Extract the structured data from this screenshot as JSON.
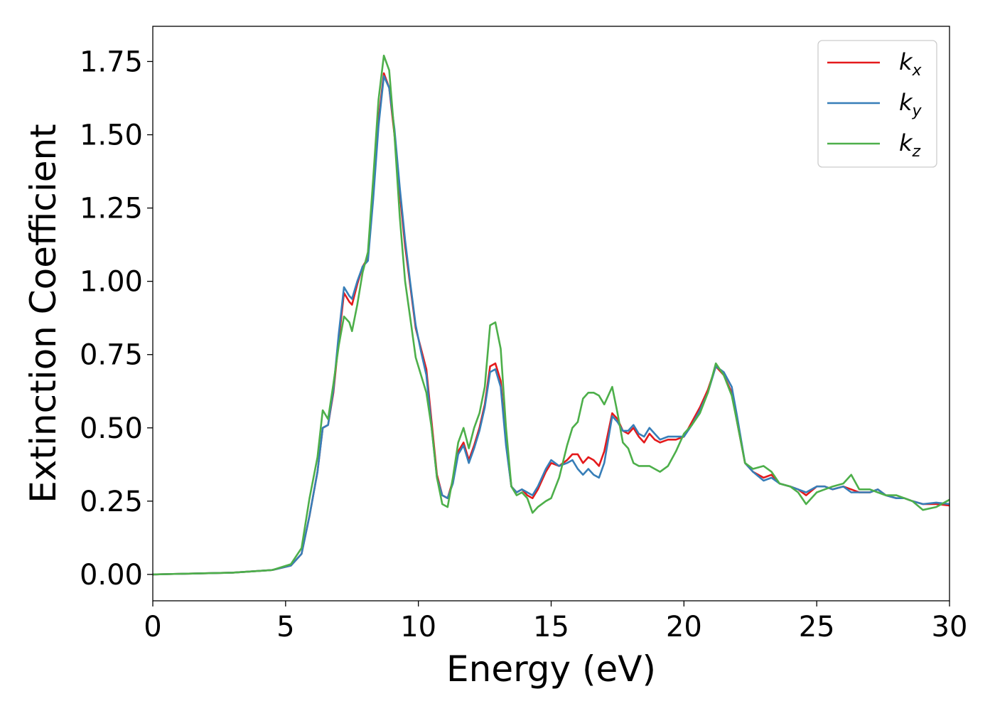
{
  "chart_data": {
    "type": "line",
    "title": "",
    "xlabel": "Energy (eV)",
    "ylabel": "Extinction Coefficient",
    "xlim": [
      0,
      30
    ],
    "ylim": [
      -0.09,
      1.87
    ],
    "xticks": [
      0,
      5,
      10,
      15,
      20,
      25,
      30
    ],
    "yticks": [
      0.0,
      0.25,
      0.5,
      0.75,
      1.0,
      1.25,
      1.5,
      1.75
    ],
    "xtick_labels": [
      "0",
      "5",
      "10",
      "15",
      "20",
      "25",
      "30"
    ],
    "ytick_labels": [
      "0.00",
      "0.25",
      "0.50",
      "0.75",
      "1.00",
      "1.25",
      "1.50",
      "1.75"
    ],
    "grid": false,
    "legend_position": "top-right",
    "series": [
      {
        "name": "k",
        "subscript": "x",
        "color": "#e41a1c",
        "points": [
          [
            0,
            0.0
          ],
          [
            3,
            0.006
          ],
          [
            4.5,
            0.015
          ],
          [
            5.2,
            0.03
          ],
          [
            5.6,
            0.07
          ],
          [
            5.9,
            0.2
          ],
          [
            6.2,
            0.35
          ],
          [
            6.4,
            0.5
          ],
          [
            6.6,
            0.51
          ],
          [
            6.8,
            0.62
          ],
          [
            7.0,
            0.8
          ],
          [
            7.2,
            0.96
          ],
          [
            7.4,
            0.93
          ],
          [
            7.5,
            0.92
          ],
          [
            7.7,
            0.99
          ],
          [
            7.9,
            1.05
          ],
          [
            8.1,
            1.08
          ],
          [
            8.3,
            1.3
          ],
          [
            8.5,
            1.55
          ],
          [
            8.7,
            1.71
          ],
          [
            8.9,
            1.66
          ],
          [
            9.1,
            1.5
          ],
          [
            9.3,
            1.3
          ],
          [
            9.5,
            1.12
          ],
          [
            9.7,
            0.98
          ],
          [
            9.9,
            0.84
          ],
          [
            10.1,
            0.77
          ],
          [
            10.3,
            0.7
          ],
          [
            10.5,
            0.52
          ],
          [
            10.7,
            0.34
          ],
          [
            10.9,
            0.27
          ],
          [
            11.1,
            0.26
          ],
          [
            11.3,
            0.32
          ],
          [
            11.5,
            0.42
          ],
          [
            11.7,
            0.45
          ],
          [
            11.9,
            0.39
          ],
          [
            12.1,
            0.44
          ],
          [
            12.3,
            0.5
          ],
          [
            12.5,
            0.58
          ],
          [
            12.7,
            0.71
          ],
          [
            12.9,
            0.72
          ],
          [
            13.1,
            0.66
          ],
          [
            13.3,
            0.45
          ],
          [
            13.5,
            0.3
          ],
          [
            13.7,
            0.28
          ],
          [
            13.9,
            0.29
          ],
          [
            14.1,
            0.27
          ],
          [
            14.3,
            0.26
          ],
          [
            14.5,
            0.29
          ],
          [
            14.8,
            0.35
          ],
          [
            15.0,
            0.38
          ],
          [
            15.3,
            0.37
          ],
          [
            15.6,
            0.39
          ],
          [
            15.8,
            0.41
          ],
          [
            16.0,
            0.41
          ],
          [
            16.2,
            0.38
          ],
          [
            16.4,
            0.4
          ],
          [
            16.6,
            0.39
          ],
          [
            16.8,
            0.37
          ],
          [
            17.0,
            0.42
          ],
          [
            17.3,
            0.55
          ],
          [
            17.5,
            0.53
          ],
          [
            17.7,
            0.49
          ],
          [
            17.9,
            0.48
          ],
          [
            18.1,
            0.5
          ],
          [
            18.3,
            0.47
          ],
          [
            18.5,
            0.45
          ],
          [
            18.7,
            0.48
          ],
          [
            18.9,
            0.46
          ],
          [
            19.1,
            0.45
          ],
          [
            19.4,
            0.46
          ],
          [
            19.7,
            0.46
          ],
          [
            20.0,
            0.47
          ],
          [
            20.3,
            0.52
          ],
          [
            20.6,
            0.57
          ],
          [
            20.9,
            0.63
          ],
          [
            21.2,
            0.71
          ],
          [
            21.5,
            0.68
          ],
          [
            21.8,
            0.62
          ],
          [
            22.0,
            0.52
          ],
          [
            22.3,
            0.38
          ],
          [
            22.6,
            0.35
          ],
          [
            23.0,
            0.33
          ],
          [
            23.3,
            0.34
          ],
          [
            23.6,
            0.31
          ],
          [
            24.0,
            0.3
          ],
          [
            24.3,
            0.29
          ],
          [
            24.6,
            0.27
          ],
          [
            25.0,
            0.3
          ],
          [
            25.3,
            0.3
          ],
          [
            25.6,
            0.29
          ],
          [
            26.0,
            0.3
          ],
          [
            26.3,
            0.29
          ],
          [
            26.6,
            0.28
          ],
          [
            27.0,
            0.28
          ],
          [
            27.3,
            0.29
          ],
          [
            27.6,
            0.27
          ],
          [
            28.0,
            0.26
          ],
          [
            28.3,
            0.26
          ],
          [
            28.6,
            0.25
          ],
          [
            29.0,
            0.24
          ],
          [
            29.5,
            0.24
          ],
          [
            30.0,
            0.235
          ]
        ]
      },
      {
        "name": "k",
        "subscript": "y",
        "color": "#377eb8",
        "points": [
          [
            0,
            0.0
          ],
          [
            3,
            0.006
          ],
          [
            4.5,
            0.015
          ],
          [
            5.2,
            0.03
          ],
          [
            5.6,
            0.07
          ],
          [
            5.9,
            0.2
          ],
          [
            6.2,
            0.35
          ],
          [
            6.4,
            0.5
          ],
          [
            6.6,
            0.51
          ],
          [
            6.8,
            0.63
          ],
          [
            7.0,
            0.82
          ],
          [
            7.2,
            0.98
          ],
          [
            7.4,
            0.95
          ],
          [
            7.5,
            0.94
          ],
          [
            7.7,
            1.0
          ],
          [
            7.9,
            1.05
          ],
          [
            8.1,
            1.07
          ],
          [
            8.3,
            1.28
          ],
          [
            8.5,
            1.53
          ],
          [
            8.7,
            1.7
          ],
          [
            8.9,
            1.66
          ],
          [
            9.1,
            1.52
          ],
          [
            9.3,
            1.32
          ],
          [
            9.5,
            1.14
          ],
          [
            9.7,
            0.99
          ],
          [
            9.9,
            0.85
          ],
          [
            10.1,
            0.76
          ],
          [
            10.3,
            0.68
          ],
          [
            10.5,
            0.5
          ],
          [
            10.7,
            0.33
          ],
          [
            10.9,
            0.27
          ],
          [
            11.1,
            0.26
          ],
          [
            11.3,
            0.31
          ],
          [
            11.5,
            0.41
          ],
          [
            11.7,
            0.44
          ],
          [
            11.9,
            0.38
          ],
          [
            12.1,
            0.43
          ],
          [
            12.3,
            0.49
          ],
          [
            12.5,
            0.57
          ],
          [
            12.7,
            0.69
          ],
          [
            12.9,
            0.7
          ],
          [
            13.1,
            0.64
          ],
          [
            13.3,
            0.44
          ],
          [
            13.5,
            0.3
          ],
          [
            13.7,
            0.28
          ],
          [
            13.9,
            0.29
          ],
          [
            14.1,
            0.28
          ],
          [
            14.3,
            0.27
          ],
          [
            14.5,
            0.3
          ],
          [
            14.8,
            0.36
          ],
          [
            15.0,
            0.39
          ],
          [
            15.3,
            0.37
          ],
          [
            15.6,
            0.38
          ],
          [
            15.8,
            0.39
          ],
          [
            16.0,
            0.36
          ],
          [
            16.2,
            0.34
          ],
          [
            16.4,
            0.36
          ],
          [
            16.6,
            0.34
          ],
          [
            16.8,
            0.33
          ],
          [
            17.0,
            0.38
          ],
          [
            17.3,
            0.54
          ],
          [
            17.5,
            0.52
          ],
          [
            17.7,
            0.49
          ],
          [
            17.9,
            0.49
          ],
          [
            18.1,
            0.51
          ],
          [
            18.3,
            0.48
          ],
          [
            18.5,
            0.47
          ],
          [
            18.7,
            0.5
          ],
          [
            18.9,
            0.48
          ],
          [
            19.1,
            0.46
          ],
          [
            19.4,
            0.47
          ],
          [
            19.7,
            0.47
          ],
          [
            20.0,
            0.47
          ],
          [
            20.3,
            0.51
          ],
          [
            20.6,
            0.56
          ],
          [
            20.9,
            0.62
          ],
          [
            21.2,
            0.71
          ],
          [
            21.5,
            0.69
          ],
          [
            21.8,
            0.64
          ],
          [
            22.0,
            0.54
          ],
          [
            22.3,
            0.38
          ],
          [
            22.6,
            0.35
          ],
          [
            23.0,
            0.32
          ],
          [
            23.3,
            0.33
          ],
          [
            23.6,
            0.31
          ],
          [
            24.0,
            0.3
          ],
          [
            24.3,
            0.29
          ],
          [
            24.6,
            0.28
          ],
          [
            25.0,
            0.3
          ],
          [
            25.3,
            0.3
          ],
          [
            25.6,
            0.29
          ],
          [
            26.0,
            0.3
          ],
          [
            26.3,
            0.28
          ],
          [
            26.6,
            0.28
          ],
          [
            27.0,
            0.28
          ],
          [
            27.3,
            0.29
          ],
          [
            27.6,
            0.27
          ],
          [
            28.0,
            0.26
          ],
          [
            28.3,
            0.26
          ],
          [
            28.6,
            0.25
          ],
          [
            29.0,
            0.24
          ],
          [
            29.5,
            0.245
          ],
          [
            30.0,
            0.24
          ]
        ]
      },
      {
        "name": "k",
        "subscript": "z",
        "color": "#4daf4a",
        "points": [
          [
            0,
            0.0
          ],
          [
            3,
            0.006
          ],
          [
            4.5,
            0.015
          ],
          [
            5.2,
            0.035
          ],
          [
            5.6,
            0.09
          ],
          [
            5.9,
            0.26
          ],
          [
            6.2,
            0.4
          ],
          [
            6.4,
            0.56
          ],
          [
            6.6,
            0.53
          ],
          [
            6.8,
            0.65
          ],
          [
            7.0,
            0.78
          ],
          [
            7.2,
            0.88
          ],
          [
            7.4,
            0.86
          ],
          [
            7.5,
            0.83
          ],
          [
            7.7,
            0.92
          ],
          [
            7.9,
            1.03
          ],
          [
            8.1,
            1.1
          ],
          [
            8.3,
            1.35
          ],
          [
            8.5,
            1.62
          ],
          [
            8.7,
            1.77
          ],
          [
            8.9,
            1.72
          ],
          [
            9.1,
            1.5
          ],
          [
            9.3,
            1.22
          ],
          [
            9.5,
            1.0
          ],
          [
            9.7,
            0.87
          ],
          [
            9.9,
            0.74
          ],
          [
            10.1,
            0.68
          ],
          [
            10.3,
            0.62
          ],
          [
            10.5,
            0.5
          ],
          [
            10.7,
            0.33
          ],
          [
            10.9,
            0.24
          ],
          [
            11.1,
            0.23
          ],
          [
            11.3,
            0.33
          ],
          [
            11.5,
            0.45
          ],
          [
            11.7,
            0.5
          ],
          [
            11.9,
            0.43
          ],
          [
            12.1,
            0.5
          ],
          [
            12.3,
            0.55
          ],
          [
            12.5,
            0.64
          ],
          [
            12.7,
            0.85
          ],
          [
            12.9,
            0.86
          ],
          [
            13.1,
            0.77
          ],
          [
            13.3,
            0.5
          ],
          [
            13.5,
            0.3
          ],
          [
            13.7,
            0.27
          ],
          [
            13.9,
            0.28
          ],
          [
            14.1,
            0.26
          ],
          [
            14.3,
            0.21
          ],
          [
            14.5,
            0.23
          ],
          [
            14.8,
            0.25
          ],
          [
            15.0,
            0.26
          ],
          [
            15.3,
            0.33
          ],
          [
            15.6,
            0.44
          ],
          [
            15.8,
            0.5
          ],
          [
            16.0,
            0.52
          ],
          [
            16.2,
            0.6
          ],
          [
            16.4,
            0.62
          ],
          [
            16.6,
            0.62
          ],
          [
            16.8,
            0.61
          ],
          [
            17.0,
            0.58
          ],
          [
            17.3,
            0.64
          ],
          [
            17.5,
            0.55
          ],
          [
            17.7,
            0.45
          ],
          [
            17.9,
            0.43
          ],
          [
            18.1,
            0.38
          ],
          [
            18.3,
            0.37
          ],
          [
            18.5,
            0.37
          ],
          [
            18.7,
            0.37
          ],
          [
            18.9,
            0.36
          ],
          [
            19.1,
            0.35
          ],
          [
            19.4,
            0.37
          ],
          [
            19.7,
            0.42
          ],
          [
            20.0,
            0.48
          ],
          [
            20.3,
            0.51
          ],
          [
            20.6,
            0.55
          ],
          [
            20.9,
            0.62
          ],
          [
            21.2,
            0.72
          ],
          [
            21.5,
            0.68
          ],
          [
            21.8,
            0.61
          ],
          [
            22.0,
            0.52
          ],
          [
            22.3,
            0.38
          ],
          [
            22.6,
            0.36
          ],
          [
            23.0,
            0.37
          ],
          [
            23.3,
            0.35
          ],
          [
            23.6,
            0.31
          ],
          [
            24.0,
            0.3
          ],
          [
            24.3,
            0.28
          ],
          [
            24.6,
            0.24
          ],
          [
            25.0,
            0.28
          ],
          [
            25.3,
            0.29
          ],
          [
            25.6,
            0.3
          ],
          [
            26.0,
            0.31
          ],
          [
            26.3,
            0.34
          ],
          [
            26.6,
            0.29
          ],
          [
            27.0,
            0.29
          ],
          [
            27.3,
            0.28
          ],
          [
            27.6,
            0.27
          ],
          [
            28.0,
            0.27
          ],
          [
            28.3,
            0.26
          ],
          [
            28.6,
            0.25
          ],
          [
            29.0,
            0.22
          ],
          [
            29.5,
            0.23
          ],
          [
            30.0,
            0.255
          ]
        ]
      }
    ]
  }
}
